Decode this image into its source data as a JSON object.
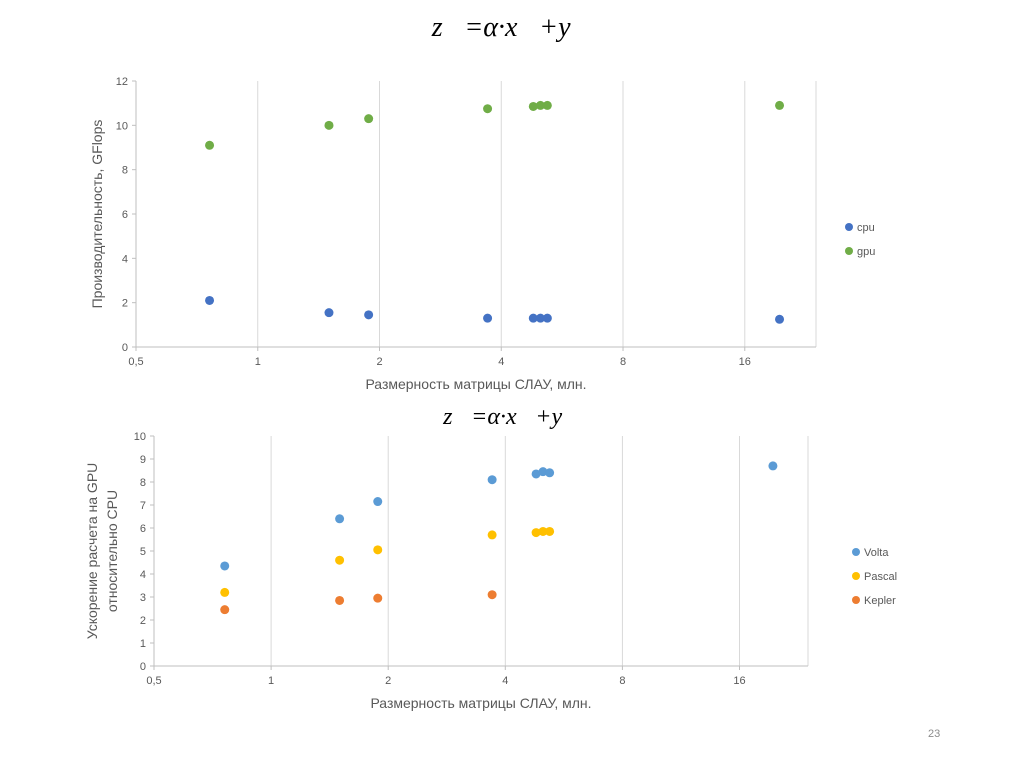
{
  "page": {
    "formula_top": "z⃗=α·x⃗+y⃗",
    "formula_bottom": "z⃗=α·x⃗+y⃗",
    "page_number": "23"
  },
  "chart_data": [
    {
      "type": "scatter",
      "title": "",
      "xlabel": "Размерность матрицы СЛАУ, млн.",
      "ylabel": "Производительность, GFlops",
      "x_scale": "log2",
      "xlim": [
        0.5,
        24
      ],
      "ylim": [
        0,
        12
      ],
      "x_ticks": [
        0.5,
        1,
        2,
        4,
        8,
        16
      ],
      "x_tick_labels": [
        "0,5",
        "1",
        "2",
        "4",
        "8",
        "16"
      ],
      "y_ticks": [
        0,
        2,
        4,
        6,
        8,
        10,
        12
      ],
      "y_tick_labels": [
        "0",
        "2",
        "4",
        "6",
        "8",
        "10",
        "12"
      ],
      "grid": "vertical",
      "legend": "right",
      "series": [
        {
          "name": "cpu",
          "color": "#4472c4",
          "points": [
            [
              0.76,
              2.1
            ],
            [
              1.5,
              1.55
            ],
            [
              1.88,
              1.45
            ],
            [
              3.7,
              1.3
            ],
            [
              4.8,
              1.3
            ],
            [
              5.0,
              1.3
            ],
            [
              5.2,
              1.3
            ],
            [
              19.5,
              1.25
            ]
          ]
        },
        {
          "name": "gpu",
          "color": "#70ad47",
          "points": [
            [
              0.76,
              9.1
            ],
            [
              1.5,
              10.0
            ],
            [
              1.88,
              10.3
            ],
            [
              3.7,
              10.75
            ],
            [
              4.8,
              10.85
            ],
            [
              5.0,
              10.9
            ],
            [
              5.2,
              10.9
            ],
            [
              19.5,
              10.9
            ]
          ]
        }
      ]
    },
    {
      "type": "scatter",
      "title": "",
      "xlabel": "Размерность матрицы СЛАУ, млн.",
      "ylabel_lines": [
        "Ускорение расчета на GPU",
        "относительно CPU"
      ],
      "x_scale": "log2",
      "xlim": [
        0.5,
        24
      ],
      "ylim": [
        0,
        10
      ],
      "x_ticks": [
        0.5,
        1,
        2,
        4,
        8,
        16
      ],
      "x_tick_labels": [
        "0,5",
        "1",
        "2",
        "4",
        "8",
        "16"
      ],
      "y_ticks": [
        0,
        1,
        2,
        3,
        4,
        5,
        6,
        7,
        8,
        9,
        10
      ],
      "y_tick_labels": [
        "0",
        "1",
        "2",
        "3",
        "4",
        "5",
        "6",
        "7",
        "8",
        "9",
        "10"
      ],
      "grid": "vertical",
      "legend": "right",
      "series": [
        {
          "name": "Volta",
          "color": "#5b9bd5",
          "points": [
            [
              0.76,
              4.35
            ],
            [
              1.5,
              6.4
            ],
            [
              1.88,
              7.15
            ],
            [
              3.7,
              8.1
            ],
            [
              4.8,
              8.35
            ],
            [
              5.0,
              8.45
            ],
            [
              5.2,
              8.4
            ],
            [
              19.5,
              8.7
            ]
          ]
        },
        {
          "name": "Pascal",
          "color": "#ffc000",
          "points": [
            [
              0.76,
              3.2
            ],
            [
              1.5,
              4.6
            ],
            [
              1.88,
              5.05
            ],
            [
              3.7,
              5.7
            ],
            [
              4.8,
              5.8
            ],
            [
              5.0,
              5.85
            ],
            [
              5.2,
              5.85
            ]
          ]
        },
        {
          "name": "Kepler",
          "color": "#ed7d31",
          "points": [
            [
              0.76,
              2.45
            ],
            [
              1.5,
              2.85
            ],
            [
              1.88,
              2.95
            ],
            [
              3.7,
              3.1
            ]
          ]
        }
      ]
    }
  ]
}
